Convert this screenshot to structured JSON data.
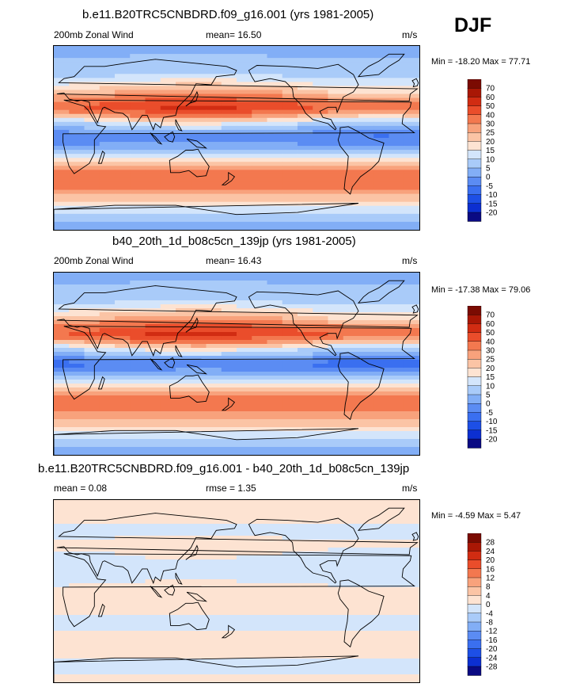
{
  "season": "DJF",
  "panels": [
    {
      "title": "b.e11.B20TRC5CNBDRD.f09_g16.001 (yrs 1981-2005)",
      "left_label": "200mb Zonal Wind",
      "center_label": "mean=  16.50",
      "right_label": "m/s",
      "minmax": "Min = -18.20 Max =  77.71",
      "colorbar_labels": [
        "70",
        "60",
        "50",
        "40",
        "30",
        "25",
        "20",
        "15",
        "10",
        "5",
        "0",
        "-5",
        "-10",
        "-15",
        "-20"
      ]
    },
    {
      "title": "b40_20th_1d_b08c5cn_139jp (yrs 1981-2005)",
      "left_label": "200mb Zonal Wind",
      "center_label": "mean=  16.43",
      "right_label": "m/s",
      "minmax": "Min = -17.38 Max =  79.06",
      "colorbar_labels": [
        "70",
        "60",
        "50",
        "40",
        "30",
        "25",
        "20",
        "15",
        "10",
        "5",
        "0",
        "-5",
        "-10",
        "-15",
        "-20"
      ]
    },
    {
      "title": "b.e11.B20TRC5CNBDRD.f09_g16.001 - b40_20th_1d_b08c5cn_139jp",
      "left_label": "mean =   0.08",
      "center_label": "rmse =   1.35",
      "right_label": "m/s",
      "minmax": "Min =  -4.59 Max =   5.47",
      "colorbar_labels": [
        "28",
        "24",
        "20",
        "16",
        "12",
        "8",
        "4",
        "0",
        "-4",
        "-8",
        "-12",
        "-16",
        "-20",
        "-24",
        "-28"
      ]
    }
  ],
  "chart_data": [
    {
      "type": "heatmap",
      "title": "b.e11.B20TRC5CNBDRD.f09_g16.001 (yrs 1981-2005)",
      "variable": "200mb Zonal Wind",
      "units": "m/s",
      "mean": 16.5,
      "min": -18.2,
      "max": 77.71,
      "color_levels": [
        -20,
        -15,
        -10,
        -5,
        0,
        5,
        10,
        15,
        20,
        25,
        30,
        40,
        50,
        60,
        70
      ],
      "zonal_profile": [
        {
          "lat": -90,
          "value": 2
        },
        {
          "lat": -75,
          "value": 8
        },
        {
          "lat": -60,
          "value": 22
        },
        {
          "lat": -45,
          "value": 33
        },
        {
          "lat": -30,
          "value": 30
        },
        {
          "lat": -15,
          "value": 8
        },
        {
          "lat": 0,
          "value": -5
        },
        {
          "lat": 15,
          "value": 12
        },
        {
          "lat": 30,
          "value": 45
        },
        {
          "lat": 45,
          "value": 24
        },
        {
          "lat": 60,
          "value": 10
        },
        {
          "lat": 75,
          "value": 6
        },
        {
          "lat": 90,
          "value": 3
        }
      ]
    },
    {
      "type": "heatmap",
      "title": "b40_20th_1d_b08c5cn_139jp (yrs 1981-2005)",
      "variable": "200mb Zonal Wind",
      "units": "m/s",
      "mean": 16.43,
      "min": -17.38,
      "max": 79.06,
      "color_levels": [
        -20,
        -15,
        -10,
        -5,
        0,
        5,
        10,
        15,
        20,
        25,
        30,
        40,
        50,
        60,
        70
      ],
      "zonal_profile": [
        {
          "lat": -90,
          "value": 2
        },
        {
          "lat": -75,
          "value": 8
        },
        {
          "lat": -60,
          "value": 21
        },
        {
          "lat": -45,
          "value": 32
        },
        {
          "lat": -30,
          "value": 30
        },
        {
          "lat": -15,
          "value": 7
        },
        {
          "lat": 0,
          "value": -6
        },
        {
          "lat": 15,
          "value": 13
        },
        {
          "lat": 30,
          "value": 46
        },
        {
          "lat": 45,
          "value": 24
        },
        {
          "lat": 60,
          "value": 10
        },
        {
          "lat": 75,
          "value": 6
        },
        {
          "lat": 90,
          "value": 3
        }
      ]
    },
    {
      "type": "heatmap",
      "title": "b.e11.B20TRC5CNBDRD.f09_g16.001 - b40_20th_1d_b08c5cn_139jp",
      "units": "m/s",
      "mean": 0.08,
      "rmse": 1.35,
      "min": -4.59,
      "max": 5.47,
      "color_levels": [
        -28,
        -24,
        -20,
        -16,
        -12,
        -8,
        -4,
        0,
        4,
        8,
        12,
        16,
        20,
        24,
        28
      ],
      "zonal_profile": [
        {
          "lat": -90,
          "value": 1
        },
        {
          "lat": -75,
          "value": -1
        },
        {
          "lat": -60,
          "value": 1
        },
        {
          "lat": -45,
          "value": 1
        },
        {
          "lat": -30,
          "value": -1
        },
        {
          "lat": -15,
          "value": 1
        },
        {
          "lat": 0,
          "value": 1
        },
        {
          "lat": 15,
          "value": -1
        },
        {
          "lat": 30,
          "value": -1
        },
        {
          "lat": 45,
          "value": 1
        },
        {
          "lat": 60,
          "value": -1
        },
        {
          "lat": 75,
          "value": 1
        },
        {
          "lat": 90,
          "value": 1
        }
      ]
    }
  ]
}
